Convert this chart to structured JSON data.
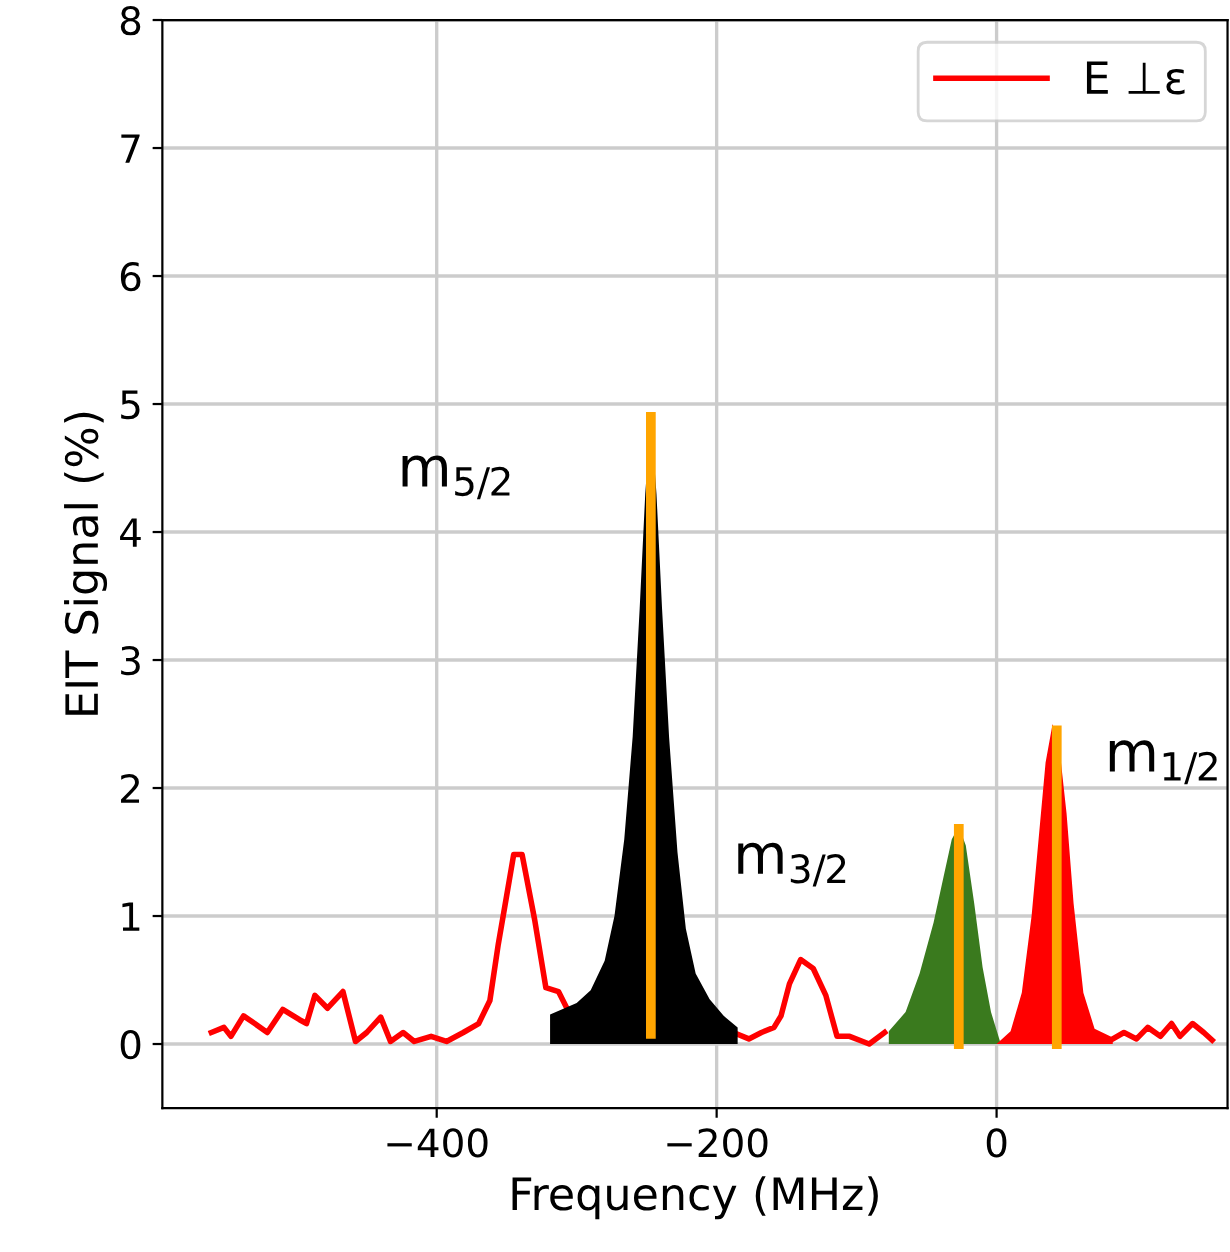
{
  "chart_data": {
    "type": "line",
    "xlabel": "Frequency (MHz)",
    "ylabel": "EIT Signal (%)",
    "xlim": [
      -596,
      165
    ],
    "ylim": [
      -0.5,
      8
    ],
    "xticks": [
      -400,
      -200,
      0
    ],
    "yticks": [
      0,
      1,
      2,
      3,
      4,
      5,
      6,
      7,
      8
    ],
    "grid": true,
    "legend": "top right",
    "series": [
      {
        "name": "E ⊥ε",
        "color": "#ff0000",
        "x": [
          -561,
          -552,
          -547,
          -538,
          -530,
          -521,
          -510,
          -498,
          -493,
          -487,
          -478,
          -467,
          -458,
          -450,
          -440,
          -433,
          -424,
          -416,
          -404,
          -393,
          -381,
          -370,
          -362,
          -356,
          -350,
          -345,
          -339,
          -330,
          -322,
          -313,
          -307,
          -250,
          -188,
          -177,
          -168,
          -159,
          -154,
          -148,
          -140,
          -131,
          -122,
          -114,
          -105,
          -91,
          -80,
          -27,
          40,
          83,
          91,
          100,
          108,
          117,
          125,
          131,
          140,
          148,
          154
        ],
        "values": [
          0.09,
          0.13,
          0.06,
          0.22,
          0.16,
          0.09,
          0.27,
          0.19,
          0.16,
          0.38,
          0.28,
          0.41,
          0.02,
          0.09,
          0.21,
          0.02,
          0.09,
          0.02,
          0.06,
          0.02,
          0.09,
          0.16,
          0.34,
          0.78,
          1.16,
          1.48,
          1.48,
          0.97,
          0.44,
          0.41,
          0.28,
          null,
          0.09,
          0.04,
          0.09,
          0.13,
          0.22,
          0.47,
          0.66,
          0.59,
          0.38,
          0.06,
          0.06,
          0.0,
          0.09,
          null,
          null,
          0.04,
          0.09,
          0.04,
          0.13,
          0.06,
          0.16,
          0.06,
          0.16,
          0.09,
          0.03
        ]
      },
      {
        "type": "area",
        "color": "#000000",
        "x": [
          -319,
          -300,
          -290,
          -280,
          -273,
          -266,
          -260,
          -255,
          -251,
          -247,
          -243,
          -239,
          -234,
          -228,
          -222,
          -215,
          -205,
          -195,
          -185
        ],
        "values": [
          0.23,
          0.32,
          0.42,
          0.65,
          1.0,
          1.6,
          2.4,
          3.4,
          4.3,
          4.9,
          4.3,
          3.4,
          2.4,
          1.5,
          0.9,
          0.55,
          0.35,
          0.22,
          0.13
        ]
      },
      {
        "type": "area",
        "color": "#3a7a1e",
        "x": [
          -77,
          -65,
          -55,
          -45,
          -38,
          -32,
          -27,
          -22,
          -16,
          -10,
          -4,
          3
        ],
        "values": [
          0.1,
          0.25,
          0.55,
          0.95,
          1.3,
          1.6,
          1.7,
          1.55,
          1.1,
          0.6,
          0.25,
          0.0
        ]
      },
      {
        "type": "area",
        "color": "#ff0000",
        "x": [
          0,
          10,
          18,
          25,
          30,
          35,
          40,
          45,
          50,
          55,
          62,
          70,
          83
        ],
        "values": [
          0.0,
          0.1,
          0.4,
          1.0,
          1.6,
          2.2,
          2.5,
          2.3,
          1.8,
          1.1,
          0.4,
          0.12,
          0.05
        ]
      },
      {
        "type": "line",
        "color": "#ffa500",
        "x": [
          -247,
          -247
        ],
        "values": [
          0.08,
          4.9
        ]
      },
      {
        "type": "line",
        "color": "#ffa500",
        "x": [
          -27,
          -27
        ],
        "values": [
          0.0,
          1.68
        ]
      },
      {
        "type": "line",
        "color": "#ffa500",
        "x": [
          43,
          43
        ],
        "values": [
          0.0,
          2.45
        ]
      }
    ],
    "annotations": [
      {
        "text": "m$_{5/2}$",
        "x": -247,
        "y": 4.9
      },
      {
        "text": "m$_{3/2}$",
        "x": -27,
        "y": 1.7
      },
      {
        "text": "m$_{1/2}$",
        "x": 40,
        "y": 2.5
      }
    ]
  }
}
